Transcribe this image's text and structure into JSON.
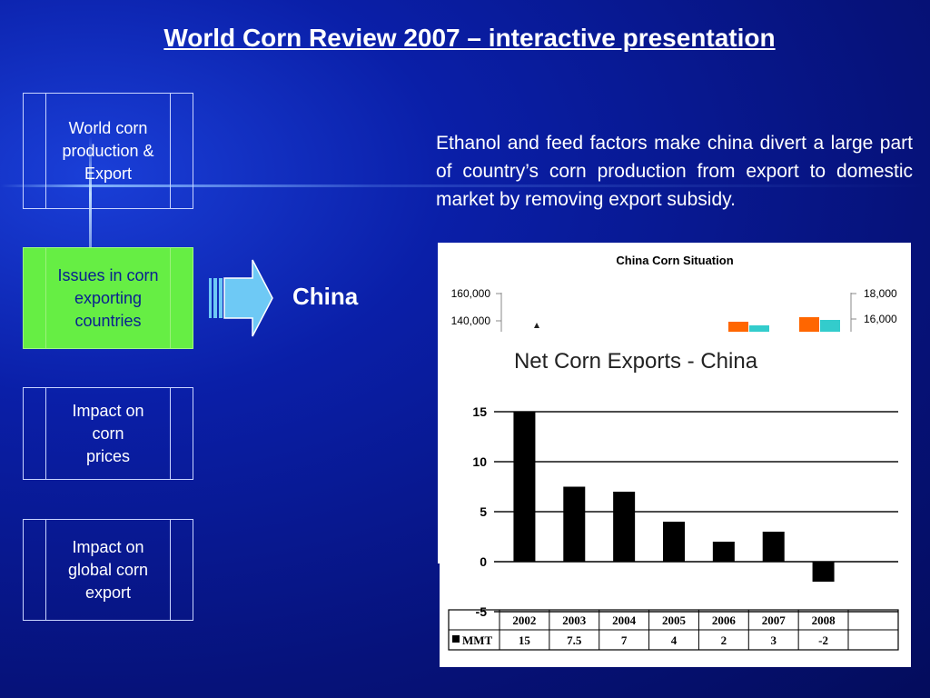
{
  "title": "World Corn Review 2007 – interactive presentation",
  "nav": [
    {
      "label": "World corn\nproduction &\nExport",
      "active": false
    },
    {
      "label": "Issues in corn\nexporting\ncountries",
      "active": true
    },
    {
      "label": "Impact on\ncorn\nprices",
      "active": false
    },
    {
      "label": "Impact on\nglobal corn\nexport",
      "active": false
    }
  ],
  "country_label": "China",
  "description": "Ethanol and feed factors make china divert a large part of country’s corn production from export to domestic market by removing export subsidy.",
  "colors": {
    "active_nav": "#66ee44",
    "bar_orange": "#ff6600",
    "bar_teal": "#33cccc"
  },
  "bg_chart": {
    "title": "China Corn Situation",
    "left_ticks": [
      "160,000",
      "140,000"
    ],
    "right_ticks": [
      "18,000",
      "16,000"
    ]
  },
  "chart_data": {
    "type": "bar",
    "title": "Net Corn Exports - China",
    "categories": [
      "2002",
      "2003",
      "2004",
      "2005",
      "2006",
      "2007",
      "2008"
    ],
    "series": [
      {
        "name": "MMT",
        "values": [
          15,
          7.5,
          7,
          4,
          2,
          3,
          -2
        ]
      }
    ],
    "table_values": [
      "15",
      "7.5",
      "7",
      "4",
      "2",
      "3",
      "-2"
    ],
    "ylim": [
      -5,
      15
    ],
    "yticks": [
      "15",
      "10",
      "5",
      "0",
      "-5"
    ],
    "grid": true
  }
}
